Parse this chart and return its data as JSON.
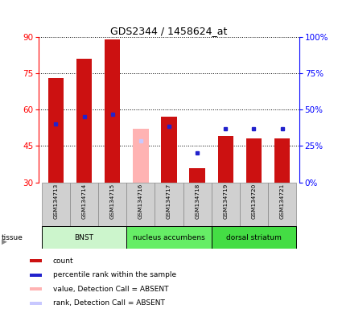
{
  "title": "GDS2344 / 1458624_at",
  "samples": [
    "GSM134713",
    "GSM134714",
    "GSM134715",
    "GSM134716",
    "GSM134717",
    "GSM134718",
    "GSM134719",
    "GSM134720",
    "GSM134721"
  ],
  "red_bars": [
    73,
    81,
    89,
    null,
    57,
    36,
    49,
    48,
    48
  ],
  "pink_bars": [
    null,
    null,
    null,
    52,
    null,
    null,
    null,
    null,
    null
  ],
  "blue_dots": [
    54,
    57,
    58,
    null,
    53,
    42,
    52,
    52,
    52
  ],
  "light_blue_dots": [
    null,
    null,
    null,
    47,
    null,
    null,
    null,
    null,
    null
  ],
  "bar_bottom": 30,
  "ylim_left": [
    30,
    90
  ],
  "ylim_right": [
    0,
    100
  ],
  "yticks_left": [
    30,
    45,
    60,
    75,
    90
  ],
  "yticks_right": [
    0,
    25,
    50,
    75,
    100
  ],
  "ytick_labels_right": [
    "0%",
    "25%",
    "50%",
    "75%",
    "100%"
  ],
  "tissue_groups": [
    {
      "label": "BNST",
      "indices": [
        0,
        1,
        2
      ],
      "color": "#ccf5cc"
    },
    {
      "label": "nucleus accumbens",
      "indices": [
        3,
        4,
        5
      ],
      "color": "#66ee66"
    },
    {
      "label": "dorsal striatum",
      "indices": [
        6,
        7,
        8
      ],
      "color": "#44dd44"
    }
  ],
  "legend_items": [
    {
      "color": "#cc1111",
      "label": "count"
    },
    {
      "color": "#2222cc",
      "label": "percentile rank within the sample"
    },
    {
      "color": "#ffb3b3",
      "label": "value, Detection Call = ABSENT"
    },
    {
      "color": "#c8c8ff",
      "label": "rank, Detection Call = ABSENT"
    }
  ],
  "bar_width": 0.55,
  "red_color": "#cc1111",
  "pink_color": "#ffb3b3",
  "blue_color": "#2222cc",
  "light_blue_color": "#c8c8ff",
  "plot_bg": "#ffffff",
  "sample_box_color": "#d0d0d0",
  "sample_box_edge": "#888888"
}
